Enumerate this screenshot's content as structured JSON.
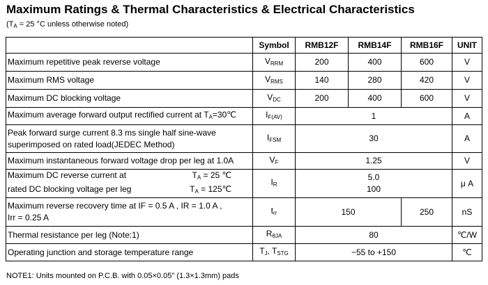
{
  "title": "Maximum Ratings & Thermal Characteristics & Electrical Characteristics",
  "subtitle": {
    "pre": "(T",
    "sub": "A",
    "post": " = 25 °C unless otherwise noted)"
  },
  "header": {
    "symbol": "Symbol",
    "parts": [
      "RMB12F",
      "RMB14F",
      "RMB16F"
    ],
    "unit": "UNIT"
  },
  "rows": [
    {
      "param": "Maximum repetitive peak reverse voltage",
      "sym": "V",
      "sym_sub": "RRM",
      "values": [
        "200",
        "400",
        "600"
      ],
      "unit": "V"
    },
    {
      "param": "Maximum RMS voltage",
      "sym": "V",
      "sym_sub": "RMS",
      "values": [
        "140",
        "280",
        "420"
      ],
      "unit": "V"
    },
    {
      "param": "Maximum DC blocking voltage",
      "sym": "V",
      "sym_sub": "DC",
      "values": [
        "200",
        "400",
        "600"
      ],
      "unit": "V"
    },
    {
      "param_pre": "Maximum average forward output rectified current at T",
      "param_sub": "A",
      "param_post": "=30℃",
      "sym": "I",
      "sym_sub": "F(AV)",
      "value": "1",
      "unit": "A"
    },
    {
      "param_line1": "Peak forward surge current 8.3 ms single half sine-wave",
      "param_line2": "superimposed on rated load(JEDEC Method)",
      "sym": "I",
      "sym_sub": "FSM",
      "value": "30",
      "unit": "A"
    },
    {
      "param": "Maximum instantaneous forward voltage drop per leg at 1.0A",
      "sym": "V",
      "sym_sub": "F",
      "value": "1.25",
      "unit": "V"
    },
    {
      "param_line1": "Maximum DC reverse current at",
      "param_line1_cond_pre": "T",
      "param_line1_cond_sub": "A",
      "param_line1_cond_post": " = 25 ℃",
      "param_line2": "rated DC blocking voltage per leg",
      "param_line2_cond_pre": "T",
      "param_line2_cond_sub": "A",
      "param_line2_cond_post": " = 125℃",
      "sym": "I",
      "sym_sub": "R",
      "value1": "5.0",
      "value2": "100",
      "unit": "μ A"
    },
    {
      "param_line1": "Maximum reverse recovery time at IF = 0.5 A , IR = 1.0 A ,",
      "param_line2": "Irr = 0.25 A",
      "sym": "t",
      "sym_sub": "rr",
      "value_a": "150",
      "value_b": "250",
      "unit": "nS"
    },
    {
      "param": "Thermal resistance per leg  (Note:1)",
      "sym": "R",
      "sym_sub": "θJA",
      "value": "80",
      "unit": "℃/W"
    },
    {
      "param": "Operating junction and storage temperature range",
      "sym": "T",
      "sym_sub": "J",
      "sym_mid": ", T",
      "sym_sub2": "STG",
      "value": "−55 to +150",
      "unit": "℃"
    }
  ],
  "note": "NOTE1: Units mounted on P.C.B. with 0.05×0.05\" (1.3×1.3mm) pads"
}
